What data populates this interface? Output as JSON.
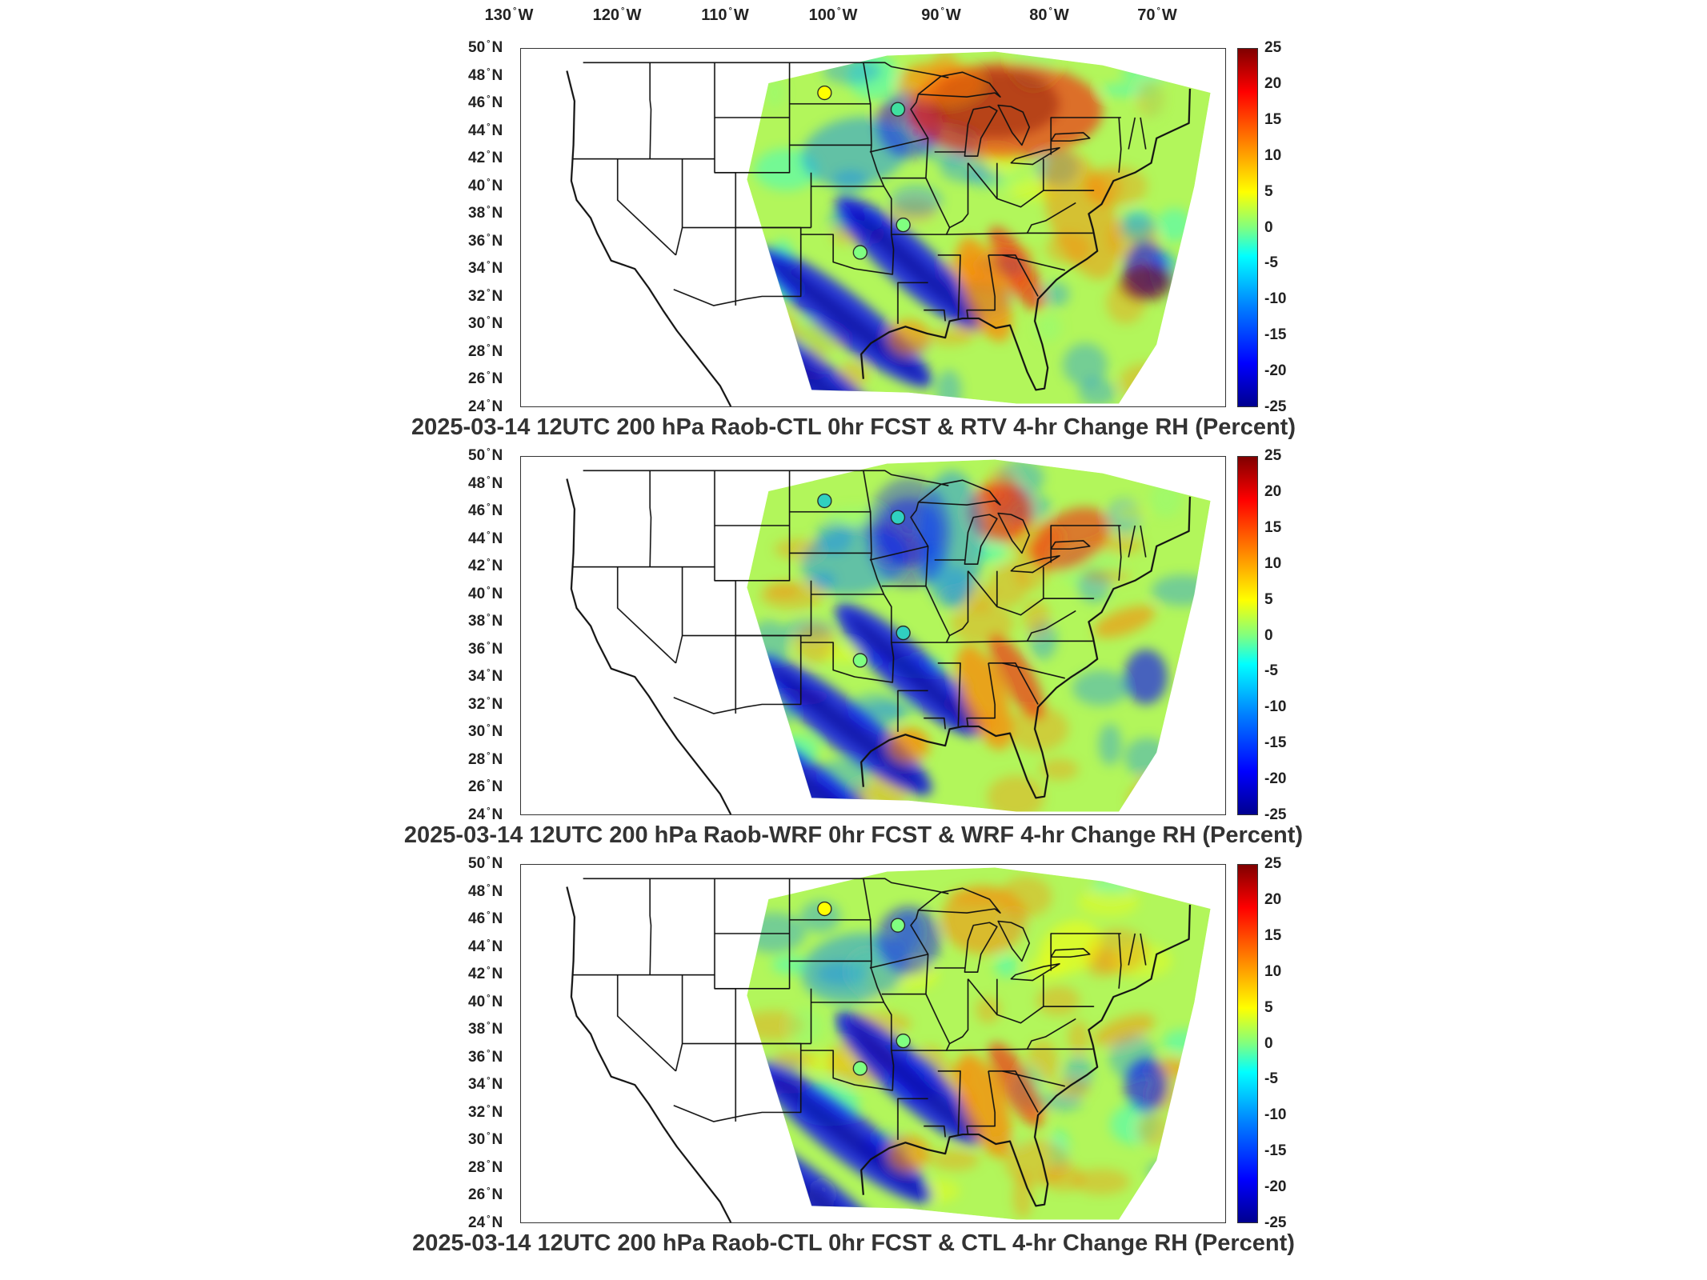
{
  "longitude_labels": [
    "130",
    "120",
    "110",
    "100",
    "90",
    "80",
    "70"
  ],
  "latitude_labels": [
    "50",
    "48",
    "46",
    "44",
    "42",
    "40",
    "38",
    "36",
    "34",
    "32",
    "30",
    "28",
    "26",
    "24"
  ],
  "lon_suffix": "W",
  "lat_suffix": "N",
  "degree_symbol": "°",
  "colorbar": {
    "ticks": [
      "25",
      "20",
      "15",
      "10",
      "5",
      "0",
      "-5",
      "-10",
      "-15",
      "-20",
      "-25"
    ],
    "min": -25,
    "max": 25,
    "colormap": "jet",
    "colors": [
      "#00008f",
      "#0000ff",
      "#0080ff",
      "#00ffff",
      "#80ff80",
      "#ffff00",
      "#ff8000",
      "#ff0000",
      "#800000"
    ]
  },
  "panels": [
    {
      "title": "2025-03-14 12UTC 200 hPa Raob-CTL 0hr FCST & RTV 4-hr Change RH (Percent)",
      "raob_markers": [
        {
          "lon": -100.8,
          "lat": 46.8,
          "color": "#ffff00"
        },
        {
          "lon": -94.0,
          "lat": 45.6,
          "color": "#40e0a0"
        },
        {
          "lon": -97.5,
          "lat": 35.2,
          "color": "#80ff80"
        },
        {
          "lon": -93.5,
          "lat": 37.2,
          "color": "#80ff80"
        }
      ]
    },
    {
      "title": "2025-03-14 12UTC 200 hPa Raob-WRF 0hr FCST & WRF 4-hr Change RH (Percent)",
      "raob_markers": [
        {
          "lon": -100.8,
          "lat": 46.8,
          "color": "#30d0c0"
        },
        {
          "lon": -94.0,
          "lat": 45.6,
          "color": "#30d0c0"
        },
        {
          "lon": -97.5,
          "lat": 35.2,
          "color": "#80ff80"
        },
        {
          "lon": -93.5,
          "lat": 37.2,
          "color": "#30d0c0"
        }
      ]
    },
    {
      "title": "2025-03-14 12UTC 200 hPa Raob-CTL 0hr FCST & CTL 4-hr Change RH (Percent)",
      "raob_markers": [
        {
          "lon": -100.8,
          "lat": 46.8,
          "color": "#ffff00"
        },
        {
          "lon": -94.0,
          "lat": 45.6,
          "color": "#80ff80"
        },
        {
          "lon": -97.5,
          "lat": 35.2,
          "color": "#80ff80"
        },
        {
          "lon": -93.5,
          "lat": 37.2,
          "color": "#80ff80"
        }
      ]
    }
  ]
}
